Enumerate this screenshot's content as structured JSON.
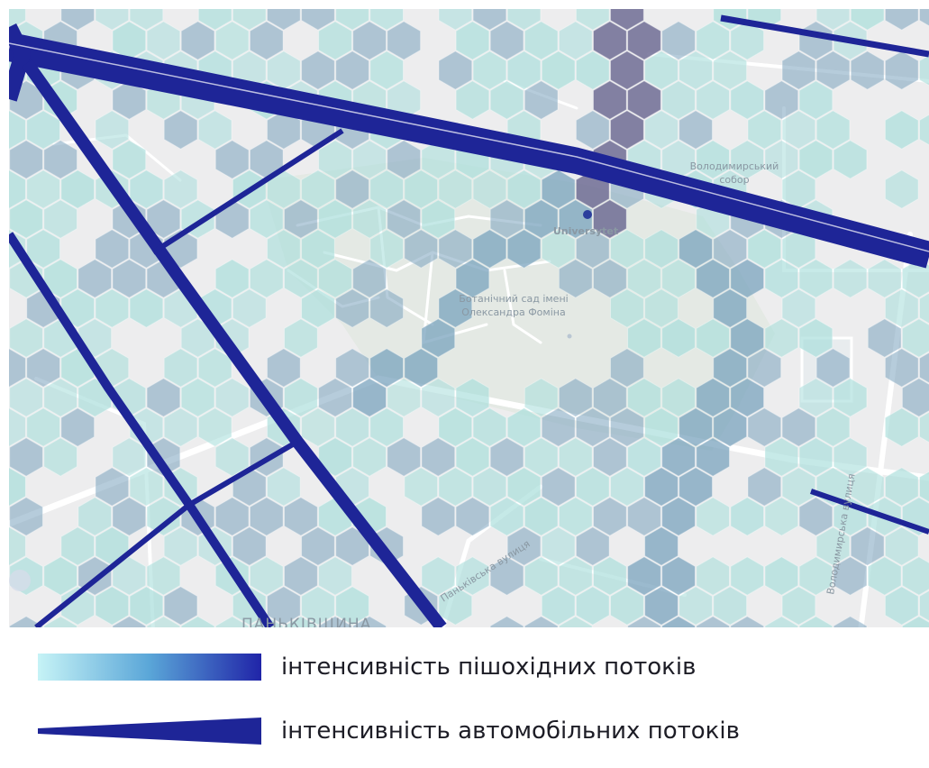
{
  "map": {
    "labels": {
      "station": "Universytet",
      "cathedral_line1": "Володимирський",
      "cathedral_line2": "собор",
      "garden_line1": "Ботанічний сад імені",
      "garden_line2": "Олександра Фоміна",
      "street_pankivska": "Паньківська вулиця",
      "street_volodymyrska": "Володимирська вулиця",
      "district": "ПАНЬКІВЩИНА"
    },
    "colors": {
      "background": "#ededee",
      "park": "#e4e9e4",
      "street": "#ffffff",
      "road": "#1e2597",
      "hex_low": "#a9dedb",
      "hex_mid": "#7aa3be",
      "hex_high": "#6f6c94"
    }
  },
  "legend": {
    "pedestrian_label": "інтенсивність пішохідних потоків",
    "vehicle_label": "інтенсивність автомобільних потоків",
    "pedestrian_gradient": [
      "#c6f3f6",
      "#5aa6d8",
      "#2024a8"
    ],
    "vehicle_color": "#1e2597"
  }
}
